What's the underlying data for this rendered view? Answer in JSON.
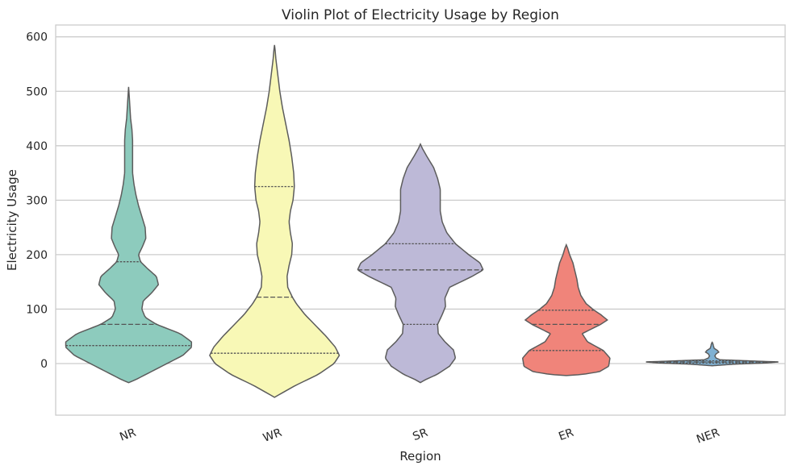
{
  "chart_data": {
    "type": "violin",
    "title": "Violin Plot of Electricity Usage by Region",
    "xlabel": "Region",
    "ylabel": "Electricity Usage",
    "categories": [
      "NR",
      "WR",
      "SR",
      "ER",
      "NER"
    ],
    "ylim": [
      -95,
      620
    ],
    "yticks": [
      0,
      100,
      200,
      300,
      400,
      500,
      600
    ],
    "grid": "horizontal",
    "colors": [
      "#8dcbbd",
      "#f8f8b6",
      "#bdb9d7",
      "#f0847a",
      "#7fb1d3"
    ],
    "violins": [
      {
        "category": "NR",
        "q1": 33,
        "median": 72,
        "q3": 187,
        "profile": [
          [
            -35,
            0
          ],
          [
            -30,
            0.1
          ],
          [
            -15,
            0.34
          ],
          [
            0,
            0.58
          ],
          [
            15,
            0.82
          ],
          [
            30,
            0.95
          ],
          [
            40,
            0.95
          ],
          [
            55,
            0.78
          ],
          [
            72,
            0.42
          ],
          [
            85,
            0.25
          ],
          [
            100,
            0.2
          ],
          [
            115,
            0.22
          ],
          [
            130,
            0.35
          ],
          [
            145,
            0.45
          ],
          [
            160,
            0.42
          ],
          [
            175,
            0.28
          ],
          [
            187,
            0.18
          ],
          [
            200,
            0.15
          ],
          [
            215,
            0.21
          ],
          [
            230,
            0.26
          ],
          [
            250,
            0.25
          ],
          [
            270,
            0.2
          ],
          [
            290,
            0.15
          ],
          [
            310,
            0.11
          ],
          [
            330,
            0.08
          ],
          [
            350,
            0.06
          ],
          [
            370,
            0.06
          ],
          [
            390,
            0.06
          ],
          [
            410,
            0.06
          ],
          [
            430,
            0.05
          ],
          [
            450,
            0.03
          ],
          [
            470,
            0.02
          ],
          [
            490,
            0.01
          ],
          [
            508,
            0
          ]
        ]
      },
      {
        "category": "WR",
        "q1": 19,
        "median": 122,
        "q3": 325,
        "profile": [
          [
            -62,
            0
          ],
          [
            -55,
            0.1
          ],
          [
            -40,
            0.32
          ],
          [
            -20,
            0.66
          ],
          [
            0,
            0.9
          ],
          [
            15,
            0.98
          ],
          [
            30,
            0.92
          ],
          [
            50,
            0.78
          ],
          [
            70,
            0.62
          ],
          [
            90,
            0.46
          ],
          [
            110,
            0.33
          ],
          [
            122,
            0.27
          ],
          [
            140,
            0.2
          ],
          [
            160,
            0.19
          ],
          [
            180,
            0.22
          ],
          [
            200,
            0.26
          ],
          [
            220,
            0.27
          ],
          [
            240,
            0.24
          ],
          [
            260,
            0.22
          ],
          [
            280,
            0.24
          ],
          [
            300,
            0.28
          ],
          [
            325,
            0.3
          ],
          [
            350,
            0.29
          ],
          [
            380,
            0.26
          ],
          [
            410,
            0.22
          ],
          [
            440,
            0.17
          ],
          [
            470,
            0.12
          ],
          [
            500,
            0.08
          ],
          [
            530,
            0.05
          ],
          [
            560,
            0.02
          ],
          [
            575,
            0.01
          ],
          [
            585,
            0
          ]
        ]
      },
      {
        "category": "SR",
        "q1": 72,
        "median": 172,
        "q3": 220,
        "profile": [
          [
            -35,
            0
          ],
          [
            -30,
            0.07
          ],
          [
            -20,
            0.25
          ],
          [
            -5,
            0.44
          ],
          [
            10,
            0.53
          ],
          [
            25,
            0.5
          ],
          [
            40,
            0.37
          ],
          [
            55,
            0.27
          ],
          [
            72,
            0.26
          ],
          [
            90,
            0.33
          ],
          [
            105,
            0.38
          ],
          [
            120,
            0.37
          ],
          [
            140,
            0.44
          ],
          [
            160,
            0.78
          ],
          [
            172,
            0.95
          ],
          [
            185,
            0.9
          ],
          [
            200,
            0.73
          ],
          [
            220,
            0.53
          ],
          [
            240,
            0.4
          ],
          [
            260,
            0.33
          ],
          [
            280,
            0.3
          ],
          [
            300,
            0.3
          ],
          [
            320,
            0.3
          ],
          [
            340,
            0.26
          ],
          [
            360,
            0.2
          ],
          [
            380,
            0.1
          ],
          [
            395,
            0.03
          ],
          [
            403,
            0
          ]
        ]
      },
      {
        "category": "ER",
        "q1": 24,
        "median": 72,
        "q3": 98,
        "profile": [
          [
            -22,
            0
          ],
          [
            -20,
            0.24
          ],
          [
            -15,
            0.5
          ],
          [
            -5,
            0.64
          ],
          [
            10,
            0.66
          ],
          [
            24,
            0.56
          ],
          [
            40,
            0.32
          ],
          [
            55,
            0.24
          ],
          [
            72,
            0.52
          ],
          [
            80,
            0.62
          ],
          [
            90,
            0.52
          ],
          [
            98,
            0.42
          ],
          [
            110,
            0.3
          ],
          [
            125,
            0.22
          ],
          [
            140,
            0.18
          ],
          [
            155,
            0.16
          ],
          [
            170,
            0.13
          ],
          [
            185,
            0.1
          ],
          [
            200,
            0.05
          ],
          [
            212,
            0.02
          ],
          [
            218,
            0
          ]
        ]
      },
      {
        "category": "NER",
        "q1": 1,
        "median": 3,
        "q3": 5,
        "profile": [
          [
            -4,
            0
          ],
          [
            -1,
            0.35
          ],
          [
            1,
            0.8
          ],
          [
            3,
            1.0
          ],
          [
            5,
            0.55
          ],
          [
            7,
            0.12
          ],
          [
            10,
            0.06
          ],
          [
            14,
            0.04
          ],
          [
            18,
            0.06
          ],
          [
            21,
            0.1
          ],
          [
            24,
            0.08
          ],
          [
            28,
            0.03
          ],
          [
            32,
            0.02
          ],
          [
            37,
            0.01
          ],
          [
            39,
            0
          ]
        ]
      }
    ]
  }
}
